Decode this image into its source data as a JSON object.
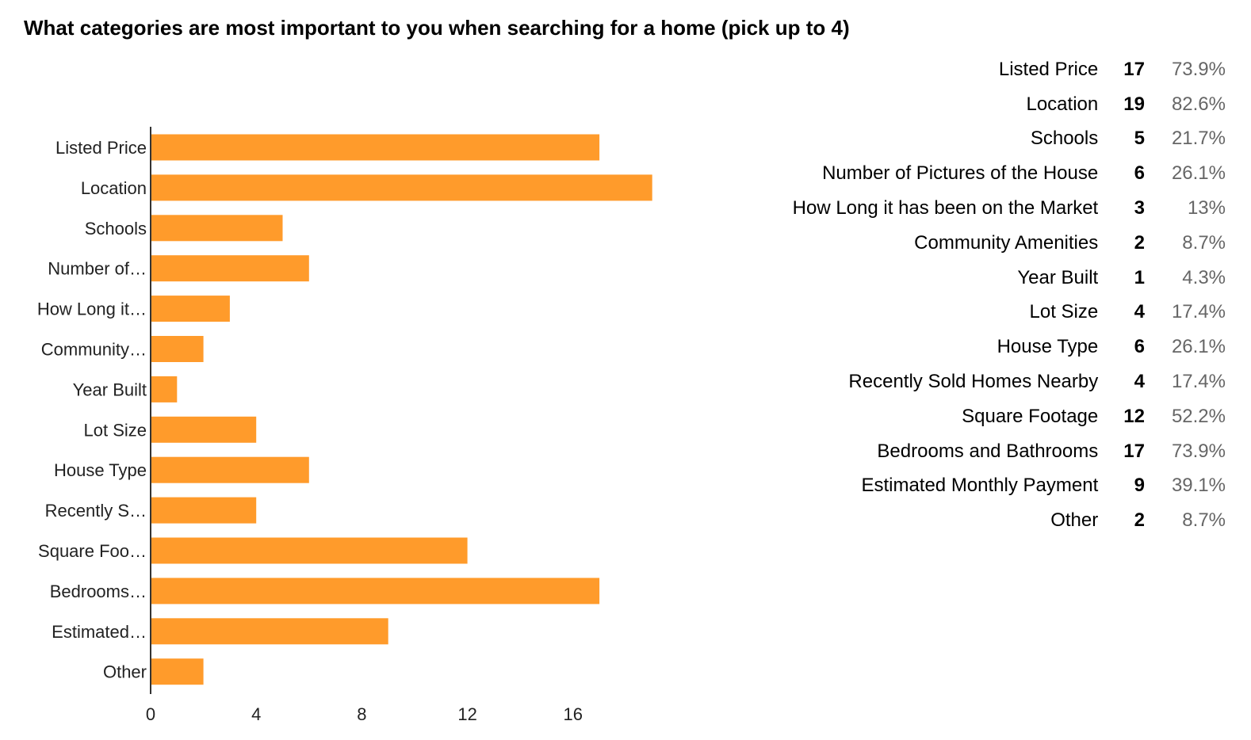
{
  "chart_data": {
    "type": "bar",
    "orientation": "horizontal",
    "title": "What categories are most important to you when searching for a home (pick up to 4)",
    "categories": [
      "Listed Price",
      "Location",
      "Schools",
      "Number of Pictures of the House",
      "How Long it has been on the Market",
      "Community Amenities",
      "Year Built",
      "Lot Size",
      "House Type",
      "Recently Sold Homes Nearby",
      "Square Footage",
      "Bedrooms and Bathrooms",
      "Estimated Monthly Payment",
      "Other"
    ],
    "axis_labels": [
      "Listed Price",
      "Location",
      "Schools",
      "Number of…",
      "How Long it…",
      "Community…",
      "Year Built",
      "Lot Size",
      "House Type",
      "Recently S…",
      "Square Foo…",
      "Bedrooms…",
      "Estimated…",
      "Other"
    ],
    "values": [
      17,
      19,
      5,
      6,
      3,
      2,
      1,
      4,
      6,
      4,
      12,
      17,
      9,
      2
    ],
    "percentages": [
      "73.9%",
      "82.6%",
      "21.7%",
      "26.1%",
      "13%",
      "8.7%",
      "4.3%",
      "17.4%",
      "26.1%",
      "17.4%",
      "52.2%",
      "73.9%",
      "39.1%",
      "8.7%"
    ],
    "xticks": [
      0,
      4,
      8,
      12,
      16
    ],
    "xlim": [
      0,
      19
    ],
    "grid": false,
    "bar_color": "#ff9b2b",
    "xlabel": "",
    "ylabel": ""
  }
}
